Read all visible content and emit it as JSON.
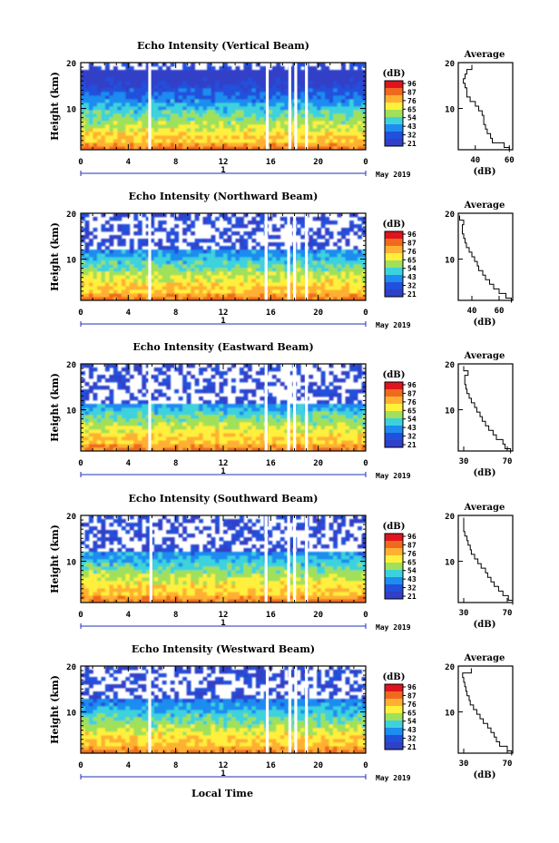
{
  "figure": {
    "bottom_label": "Local Time"
  },
  "colorbar": {
    "unit": "(dB)",
    "ticks": [
      "96",
      "87",
      "76",
      "65",
      "54",
      "43",
      "32",
      "21"
    ],
    "colors": [
      "#e0141e",
      "#f06a1e",
      "#ffb032",
      "#fff03c",
      "#a0e05a",
      "#3cd2dc",
      "#1e8cf0",
      "#2050dc",
      "#3040c8"
    ]
  },
  "chart_data": [
    {
      "type": "heatmap",
      "title": "Echo Intensity (Vertical Beam)",
      "ylabel": "Height (km)",
      "xticks": [
        "0",
        "4",
        "8",
        "12",
        "16",
        "20",
        "0"
      ],
      "yticks": [
        "20",
        "10"
      ],
      "xlim": [
        0,
        24
      ],
      "ylim": [
        1,
        20
      ],
      "date_label": "1",
      "month_label": "May 2019",
      "gaps_hours": [
        5.8,
        15.7,
        17.6,
        18.1,
        19.0
      ],
      "top_km": 18.5,
      "profile": {
        "title": "Average",
        "xlabel": "(dB)",
        "xticks": [
          "40",
          "60"
        ],
        "xlim": [
          30,
          62
        ],
        "ylim": [
          1,
          20
        ],
        "height_km": [
          1,
          2,
          3,
          4,
          5,
          6,
          7,
          8,
          9,
          10,
          11,
          12,
          13,
          14,
          15,
          16,
          17,
          18,
          19
        ],
        "db": [
          60,
          57,
          50,
          49,
          47,
          46,
          45,
          45,
          44,
          42,
          40,
          37,
          35,
          35,
          34,
          33,
          34,
          35,
          38
        ]
      }
    },
    {
      "type": "heatmap",
      "title": "Echo Intensity (Northward Beam)",
      "ylabel": "Height (km)",
      "xticks": [
        "0",
        "4",
        "8",
        "12",
        "16",
        "20",
        "0"
      ],
      "yticks": [
        "20",
        "10"
      ],
      "xlim": [
        0,
        24
      ],
      "ylim": [
        1,
        20
      ],
      "date_label": "1",
      "month_label": "May 2019",
      "gaps_hours": [
        5.8,
        15.6,
        17.5,
        18.0,
        19.0
      ],
      "top_km": 12.0,
      "profile": {
        "title": "Average",
        "xlabel": "(dB)",
        "xticks": [
          "40",
          "60"
        ],
        "xlim": [
          30,
          70
        ],
        "ylim": [
          1,
          20
        ],
        "height_km": [
          1,
          2,
          3,
          4,
          5,
          6,
          7,
          8,
          9,
          10,
          11,
          12,
          13,
          14,
          15,
          16,
          17,
          18,
          19
        ],
        "db": [
          69,
          65,
          60,
          56,
          53,
          50,
          48,
          45,
          44,
          42,
          40,
          38,
          36,
          35,
          34,
          33,
          33,
          34,
          31
        ]
      }
    },
    {
      "type": "heatmap",
      "title": "Echo Intensity (Eastward Beam)",
      "ylabel": "Height (km)",
      "xticks": [
        "0",
        "4",
        "8",
        "12",
        "16",
        "20",
        "0"
      ],
      "yticks": [
        "20",
        "10"
      ],
      "xlim": [
        0,
        24
      ],
      "ylim": [
        1,
        20
      ],
      "date_label": "1",
      "month_label": "May 2019",
      "gaps_hours": [
        5.8,
        15.6,
        17.5,
        18.0,
        19.0
      ],
      "top_km": 11.5,
      "profile": {
        "title": "Average",
        "xlabel": "(dB)",
        "xticks": [
          "30",
          "70"
        ],
        "xlim": [
          25,
          75
        ],
        "ylim": [
          1,
          20
        ],
        "height_km": [
          1,
          2,
          3,
          4,
          5,
          6,
          7,
          8,
          9,
          10,
          11,
          12,
          13,
          14,
          15,
          16,
          17,
          18,
          19
        ],
        "db": [
          73,
          68,
          66,
          60,
          57,
          53,
          50,
          47,
          45,
          42,
          40,
          37,
          35,
          33,
          32,
          31,
          31,
          34,
          30
        ]
      }
    },
    {
      "type": "heatmap",
      "title": "Echo Intensity (Southward Beam)",
      "ylabel": "Height (km)",
      "xticks": [
        "0",
        "4",
        "8",
        "12",
        "16",
        "20",
        "0"
      ],
      "yticks": [
        "20",
        "10"
      ],
      "xlim": [
        0,
        24
      ],
      "ylim": [
        1,
        20
      ],
      "date_label": "1",
      "month_label": "May 2019",
      "gaps_hours": [
        5.9,
        15.6,
        17.5,
        18.0,
        19.0
      ],
      "top_km": 12.0,
      "profile": {
        "title": "Average",
        "xlabel": "(dB)",
        "xticks": [
          "30",
          "70"
        ],
        "xlim": [
          25,
          75
        ],
        "ylim": [
          1,
          20
        ],
        "height_km": [
          1,
          2,
          3,
          4,
          5,
          6,
          7,
          8,
          9,
          10,
          11,
          12,
          13,
          14,
          15,
          16,
          17,
          18,
          19
        ],
        "db": [
          75,
          71,
          66,
          62,
          58,
          55,
          52,
          50,
          46,
          43,
          40,
          37,
          36,
          34,
          33,
          31,
          30,
          30,
          30
        ]
      }
    },
    {
      "type": "heatmap",
      "title": "Echo Intensity (Westward Beam)",
      "ylabel": "Height (km)",
      "xticks": [
        "0",
        "4",
        "8",
        "12",
        "16",
        "20",
        "0"
      ],
      "yticks": [
        "20",
        "10"
      ],
      "xlim": [
        0,
        24
      ],
      "ylim": [
        1,
        20
      ],
      "date_label": "1",
      "month_label": "May 2019",
      "gaps_hours": [
        5.8,
        15.7,
        17.6,
        18.1,
        19.0
      ],
      "top_km": 13.0,
      "profile": {
        "title": "Average",
        "xlabel": "(dB)",
        "xticks": [
          "30",
          "70"
        ],
        "xlim": [
          25,
          75
        ],
        "ylim": [
          1,
          20
        ],
        "height_km": [
          1,
          2,
          3,
          4,
          5,
          6,
          7,
          8,
          9,
          10,
          11,
          12,
          13,
          14,
          15,
          16,
          17,
          18,
          19
        ],
        "db": [
          74,
          70,
          63,
          60,
          58,
          55,
          52,
          48,
          45,
          42,
          39,
          36,
          35,
          33,
          32,
          31,
          30,
          29,
          37
        ]
      }
    }
  ]
}
